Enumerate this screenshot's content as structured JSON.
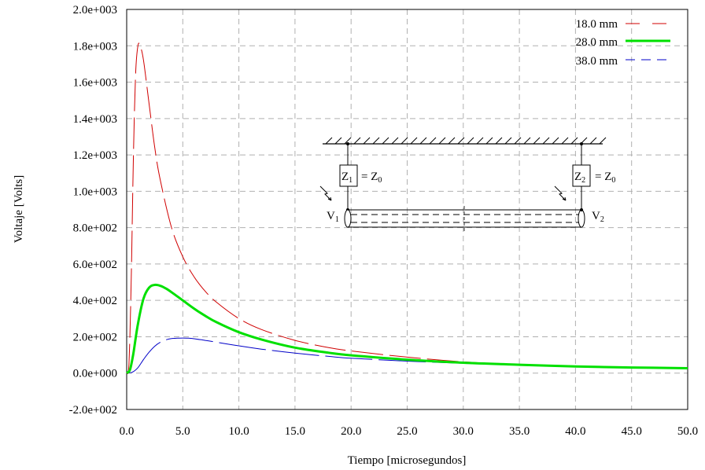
{
  "chart_data": {
    "type": "line",
    "xlabel": "Tiempo [microsegundos]",
    "ylabel": "Voltaje [Volts]",
    "xlim": [
      0,
      50
    ],
    "ylim": [
      -200,
      2000
    ],
    "x_ticks": [
      0,
      5,
      10,
      15,
      20,
      25,
      30,
      35,
      40,
      45,
      50
    ],
    "x_tick_labels": [
      "0.0",
      "5.0",
      "10.0",
      "15.0",
      "20.0",
      "25.0",
      "30.0",
      "35.0",
      "40.0",
      "45.0",
      "50.0"
    ],
    "y_ticks": [
      -200,
      0,
      200,
      400,
      600,
      800,
      1000,
      1200,
      1400,
      1600,
      1800,
      2000
    ],
    "y_tick_labels": [
      "-2.0e+002",
      "0.0e+000",
      "2.0e+002",
      "4.0e+002",
      "6.0e+002",
      "8.0e+002",
      "1.0e+003",
      "1.2e+003",
      "1.4e+003",
      "1.6e+003",
      "1.8e+003",
      "2.0e+003"
    ],
    "grid": true,
    "legend_position": "top-right",
    "series": [
      {
        "name": "18.0 mm",
        "color": "#d00000",
        "style": "long-dash",
        "x": [
          0,
          0.2,
          0.4,
          0.6,
          0.8,
          1.0,
          1.2,
          1.5,
          2.0,
          2.5,
          3.0,
          4.0,
          5.0,
          6.0,
          7.0,
          8.0,
          10.0,
          12.0,
          15.0,
          18.0,
          20.0,
          25.0,
          30.0,
          35.0,
          40.0,
          45.0,
          50.0
        ],
        "y": [
          0,
          50,
          500,
          1200,
          1650,
          1800,
          1800,
          1720,
          1480,
          1240,
          1060,
          800,
          640,
          530,
          450,
          390,
          300,
          240,
          180,
          140,
          122,
          88,
          62,
          47,
          38,
          32,
          28
        ]
      },
      {
        "name": "28.0 mm",
        "color": "#00e000",
        "style": "solid-thick",
        "x": [
          0,
          0.3,
          0.6,
          1.0,
          1.5,
          2.0,
          2.5,
          3.0,
          3.5,
          4.0,
          5.0,
          6.0,
          7.0,
          8.0,
          10.0,
          12.0,
          15.0,
          18.0,
          20.0,
          25.0,
          30.0,
          35.0,
          40.0,
          45.0,
          50.0
        ],
        "y": [
          0,
          20,
          110,
          270,
          410,
          470,
          485,
          480,
          465,
          445,
          400,
          355,
          315,
          280,
          225,
          185,
          140,
          112,
          98,
          74,
          57,
          46,
          37,
          31,
          27
        ]
      },
      {
        "name": "38.0 mm",
        "color": "#0000c8",
        "style": "dash",
        "x": [
          0,
          0.5,
          1.0,
          1.5,
          2.0,
          2.5,
          3.0,
          3.5,
          4.0,
          4.5,
          5.0,
          5.5,
          6.0,
          7.0,
          8.0,
          10.0,
          12.0,
          15.0,
          18.0,
          20.0,
          25.0,
          30.0,
          35.0,
          40.0,
          45.0,
          50.0
        ],
        "y": [
          0,
          5,
          30,
          75,
          115,
          148,
          170,
          183,
          190,
          192,
          193,
          192,
          189,
          180,
          170,
          150,
          132,
          110,
          92,
          82,
          66,
          54,
          44,
          36,
          30,
          26
        ]
      }
    ]
  },
  "inset": {
    "z1_label": "Z",
    "z1_sub": "1",
    "z1_rhs": "= Z",
    "z1_rhs_sub": "0",
    "z2_label": "Z",
    "z2_sub": "2",
    "z2_rhs": "= Z",
    "z2_rhs_sub": "0",
    "v1_label": "V",
    "v1_sub": "1",
    "v2_label": "V",
    "v2_sub": "2"
  }
}
